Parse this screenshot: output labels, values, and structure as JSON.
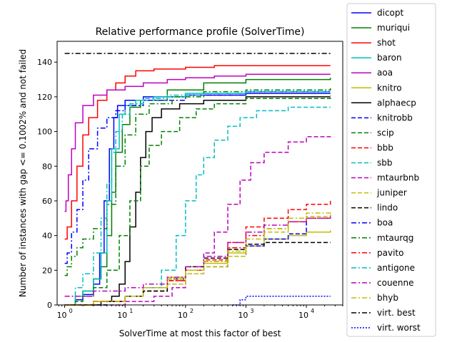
{
  "chart_data": {
    "type": "line",
    "title": "Relative performance profile (SolverTime)",
    "xlabel": "SolverTime at most this factor of best",
    "ylabel": "Number of instances with gap <= 0.1002% and not failed",
    "x_scale": "log",
    "xlim": [
      0.75,
      40000
    ],
    "ylim": [
      0,
      152
    ],
    "x_ticks": [
      {
        "value": 1,
        "base": "10",
        "exp": "0"
      },
      {
        "value": 10,
        "base": "10",
        "exp": "1"
      },
      {
        "value": 100,
        "base": "10",
        "exp": "2"
      },
      {
        "value": 1000,
        "base": "10",
        "exp": "3"
      },
      {
        "value": 10000,
        "base": "10",
        "exp": "4"
      }
    ],
    "y_ticks": [
      0,
      20,
      40,
      60,
      80,
      100,
      120,
      140
    ],
    "grid": false,
    "legend_position": "outside-right",
    "series": [
      {
        "name": "dicopt",
        "color": "#0000ff",
        "dash": "solid",
        "points": [
          [
            1,
            0
          ],
          [
            1.5,
            3
          ],
          [
            2,
            6
          ],
          [
            3,
            12
          ],
          [
            3.8,
            30
          ],
          [
            4.5,
            60
          ],
          [
            5.5,
            90
          ],
          [
            6.5,
            108
          ],
          [
            7.5,
            115
          ],
          [
            10,
            118
          ],
          [
            20,
            120
          ],
          [
            100,
            121
          ],
          [
            1000,
            122
          ],
          [
            25000,
            122
          ]
        ]
      },
      {
        "name": "muriqui",
        "color": "#008000",
        "dash": "solid",
        "points": [
          [
            1,
            0
          ],
          [
            1.5,
            5
          ],
          [
            2,
            8
          ],
          [
            3,
            15
          ],
          [
            4,
            22
          ],
          [
            5,
            40
          ],
          [
            6,
            65
          ],
          [
            7,
            88
          ],
          [
            9,
            104
          ],
          [
            12,
            114
          ],
          [
            18,
            118
          ],
          [
            50,
            124
          ],
          [
            200,
            128
          ],
          [
            1000,
            130
          ],
          [
            25000,
            131
          ]
        ]
      },
      {
        "name": "shot",
        "color": "#ff0000",
        "dash": "solid",
        "points": [
          [
            1,
            38
          ],
          [
            1.1,
            45
          ],
          [
            1.3,
            60
          ],
          [
            1.6,
            80
          ],
          [
            2,
            98
          ],
          [
            2.5,
            108
          ],
          [
            3.5,
            118
          ],
          [
            5,
            124
          ],
          [
            7,
            128
          ],
          [
            10,
            132
          ],
          [
            15,
            135
          ],
          [
            30,
            136
          ],
          [
            100,
            137
          ],
          [
            300,
            138
          ],
          [
            25000,
            138
          ]
        ]
      },
      {
        "name": "baron",
        "color": "#00bfbf",
        "dash": "solid",
        "points": [
          [
            1,
            0
          ],
          [
            1.5,
            5
          ],
          [
            2,
            8
          ],
          [
            3,
            15
          ],
          [
            4,
            30
          ],
          [
            5,
            60
          ],
          [
            6,
            90
          ],
          [
            8,
            110
          ],
          [
            10,
            115
          ],
          [
            15,
            118
          ],
          [
            30,
            120
          ],
          [
            100,
            122
          ],
          [
            1000,
            123
          ],
          [
            25000,
            123
          ]
        ]
      },
      {
        "name": "aoa",
        "color": "#bf00bf",
        "dash": "solid",
        "points": [
          [
            1,
            54
          ],
          [
            1.05,
            60
          ],
          [
            1.15,
            75
          ],
          [
            1.3,
            90
          ],
          [
            1.5,
            105
          ],
          [
            2,
            115
          ],
          [
            3,
            121
          ],
          [
            5,
            124
          ],
          [
            10,
            126
          ],
          [
            20,
            128
          ],
          [
            50,
            130
          ],
          [
            100,
            131
          ],
          [
            300,
            132
          ],
          [
            1000,
            133
          ],
          [
            25000,
            133
          ]
        ]
      },
      {
        "name": "knitro",
        "color": "#bfbf00",
        "dash": "solid",
        "points": [
          [
            1,
            0
          ],
          [
            3,
            2
          ],
          [
            10,
            5
          ],
          [
            20,
            10
          ],
          [
            50,
            16
          ],
          [
            100,
            20
          ],
          [
            200,
            24
          ],
          [
            500,
            30
          ],
          [
            1000,
            34
          ],
          [
            2000,
            38
          ],
          [
            5000,
            40
          ],
          [
            10000,
            42
          ],
          [
            25000,
            43
          ]
        ]
      },
      {
        "name": "alphaecp",
        "color": "#000000",
        "dash": "solid",
        "points": [
          [
            3,
            0
          ],
          [
            4,
            2
          ],
          [
            6,
            5
          ],
          [
            8,
            12
          ],
          [
            10,
            25
          ],
          [
            12,
            45
          ],
          [
            15,
            65
          ],
          [
            18,
            85
          ],
          [
            22,
            100
          ],
          [
            28,
            108
          ],
          [
            40,
            113
          ],
          [
            80,
            116
          ],
          [
            200,
            118
          ],
          [
            1000,
            120
          ],
          [
            25000,
            120
          ]
        ]
      },
      {
        "name": "knitrobb",
        "color": "#0000ff",
        "dash": "dashed",
        "points": [
          [
            1,
            0
          ],
          [
            3,
            2
          ],
          [
            10,
            5
          ],
          [
            20,
            8
          ],
          [
            50,
            12
          ],
          [
            100,
            18
          ],
          [
            200,
            22
          ],
          [
            500,
            28
          ],
          [
            1000,
            34
          ],
          [
            2000,
            38
          ],
          [
            5000,
            41
          ],
          [
            10000,
            50
          ],
          [
            25000,
            52
          ]
        ]
      },
      {
        "name": "scip",
        "color": "#008000",
        "dash": "dashed",
        "points": [
          [
            1,
            0
          ],
          [
            1.5,
            2
          ],
          [
            2,
            5
          ],
          [
            3,
            10
          ],
          [
            5,
            20
          ],
          [
            8,
            40
          ],
          [
            12,
            60
          ],
          [
            18,
            80
          ],
          [
            25,
            92
          ],
          [
            40,
            100
          ],
          [
            80,
            108
          ],
          [
            150,
            113
          ],
          [
            300,
            116
          ],
          [
            1000,
            119
          ],
          [
            25000,
            121
          ]
        ]
      },
      {
        "name": "bbb",
        "color": "#ff0000",
        "dash": "dashed",
        "points": [
          [
            1,
            0
          ],
          [
            3,
            2
          ],
          [
            10,
            5
          ],
          [
            20,
            8
          ],
          [
            50,
            14
          ],
          [
            100,
            20
          ],
          [
            200,
            26
          ],
          [
            500,
            36
          ],
          [
            1000,
            45
          ],
          [
            2000,
            50
          ],
          [
            5000,
            55
          ],
          [
            10000,
            58
          ],
          [
            25000,
            60
          ]
        ]
      },
      {
        "name": "sbb",
        "color": "#00bfbf",
        "dash": "dashed",
        "points": [
          [
            1,
            0
          ],
          [
            5,
            2
          ],
          [
            10,
            5
          ],
          [
            20,
            10
          ],
          [
            40,
            20
          ],
          [
            70,
            40
          ],
          [
            100,
            60
          ],
          [
            150,
            75
          ],
          [
            200,
            85
          ],
          [
            300,
            95
          ],
          [
            500,
            103
          ],
          [
            800,
            108
          ],
          [
            1500,
            112
          ],
          [
            5000,
            114
          ],
          [
            25000,
            114
          ]
        ]
      },
      {
        "name": "mtaurbnb",
        "color": "#bf00bf",
        "dash": "dashed",
        "points": [
          [
            1,
            0
          ],
          [
            10,
            2
          ],
          [
            30,
            5
          ],
          [
            60,
            10
          ],
          [
            100,
            18
          ],
          [
            200,
            30
          ],
          [
            300,
            42
          ],
          [
            500,
            58
          ],
          [
            800,
            72
          ],
          [
            1200,
            82
          ],
          [
            2000,
            88
          ],
          [
            5000,
            94
          ],
          [
            10000,
            97
          ],
          [
            25000,
            98
          ]
        ]
      },
      {
        "name": "juniper",
        "color": "#bfbf00",
        "dash": "dashed",
        "points": [
          [
            1,
            0
          ],
          [
            3,
            2
          ],
          [
            10,
            5
          ],
          [
            20,
            8
          ],
          [
            50,
            12
          ],
          [
            100,
            18
          ],
          [
            200,
            22
          ],
          [
            500,
            28
          ],
          [
            1000,
            35
          ],
          [
            2000,
            42
          ],
          [
            5000,
            48
          ],
          [
            10000,
            51
          ],
          [
            25000,
            52
          ]
        ]
      },
      {
        "name": "lindo",
        "color": "#000000",
        "dash": "dashed",
        "points": [
          [
            1,
            0
          ],
          [
            5,
            2
          ],
          [
            10,
            5
          ],
          [
            20,
            8
          ],
          [
            50,
            15
          ],
          [
            100,
            22
          ],
          [
            200,
            27
          ],
          [
            500,
            32
          ],
          [
            1000,
            35
          ],
          [
            2000,
            36
          ],
          [
            25000,
            36
          ]
        ]
      },
      {
        "name": "boa",
        "color": "#0000ff",
        "dash": "dashdot",
        "points": [
          [
            1,
            24
          ],
          [
            1.1,
            30
          ],
          [
            1.3,
            42
          ],
          [
            1.6,
            55
          ],
          [
            2,
            72
          ],
          [
            2.5,
            90
          ],
          [
            3.5,
            102
          ],
          [
            5,
            108
          ],
          [
            7,
            112
          ],
          [
            10,
            115
          ],
          [
            20,
            118
          ],
          [
            100,
            121
          ],
          [
            1000,
            123
          ],
          [
            25000,
            124
          ]
        ]
      },
      {
        "name": "mtaurqg",
        "color": "#008000",
        "dash": "dashdot",
        "points": [
          [
            1,
            17
          ],
          [
            1.1,
            22
          ],
          [
            1.3,
            28
          ],
          [
            1.6,
            33
          ],
          [
            2,
            38
          ],
          [
            3,
            44
          ],
          [
            5,
            58
          ],
          [
            7,
            80
          ],
          [
            10,
            98
          ],
          [
            15,
            110
          ],
          [
            25,
            116
          ],
          [
            60,
            120
          ],
          [
            200,
            123
          ],
          [
            1000,
            124
          ],
          [
            25000,
            125
          ]
        ]
      },
      {
        "name": "pavito",
        "color": "#ff0000",
        "dash": "dashdot",
        "points": [
          [
            1,
            0
          ],
          [
            3,
            2
          ],
          [
            10,
            5
          ],
          [
            20,
            10
          ],
          [
            50,
            14
          ],
          [
            100,
            20
          ],
          [
            200,
            25
          ],
          [
            500,
            33
          ],
          [
            1000,
            40
          ],
          [
            2000,
            44
          ],
          [
            5000,
            48
          ],
          [
            10000,
            50
          ],
          [
            25000,
            51
          ]
        ]
      },
      {
        "name": "antigone",
        "color": "#00bfbf",
        "dash": "dashdot",
        "points": [
          [
            1,
            5
          ],
          [
            1.5,
            10
          ],
          [
            2,
            18
          ],
          [
            3,
            30
          ],
          [
            4,
            50
          ],
          [
            5,
            70
          ],
          [
            6,
            88
          ],
          [
            7,
            100
          ],
          [
            9,
            110
          ],
          [
            12,
            116
          ],
          [
            20,
            119
          ],
          [
            50,
            121
          ],
          [
            200,
            122
          ],
          [
            1000,
            123
          ],
          [
            25000,
            123
          ]
        ]
      },
      {
        "name": "couenne",
        "color": "#bf00bf",
        "dash": "dashdot",
        "points": [
          [
            1,
            5
          ],
          [
            3,
            8
          ],
          [
            10,
            10
          ],
          [
            20,
            12
          ],
          [
            50,
            16
          ],
          [
            100,
            22
          ],
          [
            200,
            28
          ],
          [
            500,
            36
          ],
          [
            1000,
            42
          ],
          [
            2000,
            46
          ],
          [
            5000,
            48
          ],
          [
            10000,
            50
          ],
          [
            25000,
            51
          ]
        ]
      },
      {
        "name": "bhyb",
        "color": "#bfbf00",
        "dash": "dashdot",
        "points": [
          [
            1,
            0
          ],
          [
            3,
            2
          ],
          [
            10,
            5
          ],
          [
            20,
            10
          ],
          [
            50,
            15
          ],
          [
            100,
            20
          ],
          [
            200,
            25
          ],
          [
            500,
            31
          ],
          [
            1000,
            38
          ],
          [
            2000,
            44
          ],
          [
            5000,
            50
          ],
          [
            10000,
            53
          ],
          [
            25000,
            54
          ]
        ]
      },
      {
        "name": "virt. best",
        "color": "#000000",
        "dash": "dashdot",
        "points": [
          [
            1,
            145
          ],
          [
            25000,
            145
          ]
        ]
      },
      {
        "name": "virt. worst",
        "color": "#0000ff",
        "dash": "dotted",
        "points": [
          [
            600,
            0
          ],
          [
            800,
            3
          ],
          [
            1000,
            5
          ],
          [
            25000,
            5
          ]
        ]
      }
    ]
  }
}
